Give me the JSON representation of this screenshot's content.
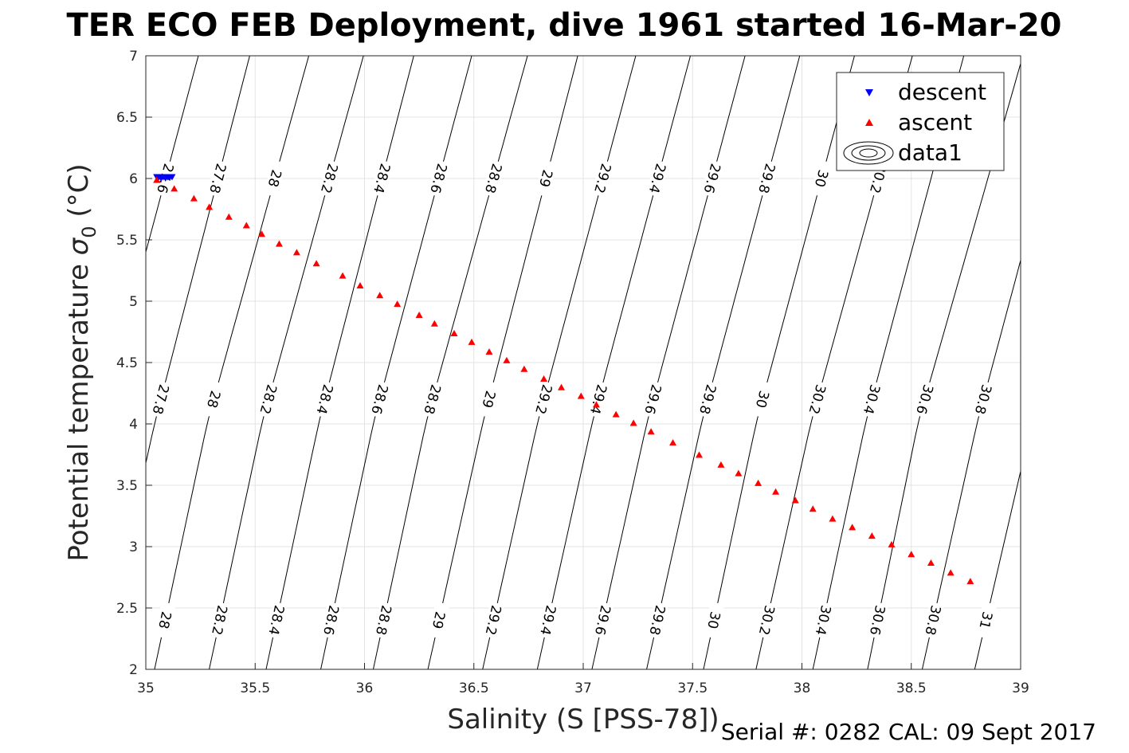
{
  "chart_data": {
    "type": "scatter",
    "title": "TER ECO FEB Deployment, dive 1961 started 16-Mar-20",
    "xlabel": "Salinity (S [PSS-78])",
    "ylabel_main": "Potential temperature ",
    "ylabel_symbol": "σ",
    "ylabel_sub": "0",
    "ylabel_unit": " (°C)",
    "xlim": [
      35,
      39
    ],
    "ylim": [
      2,
      7
    ],
    "xticks": [
      "35",
      "35.5",
      "36",
      "36.5",
      "37",
      "37.5",
      "38",
      "38.5",
      "39"
    ],
    "yticks": [
      "2",
      "2.5",
      "3",
      "3.5",
      "4",
      "4.5",
      "5",
      "5.5",
      "6",
      "6.5",
      "7"
    ],
    "grid": true,
    "legend_position": "top-right",
    "legend": [
      "descent",
      "ascent",
      "data1"
    ],
    "series": [
      {
        "name": "descent",
        "marker": "triangle-down",
        "color": "#0000ff",
        "x": [
          35.05,
          35.06,
          35.07,
          35.08,
          35.09,
          35.1,
          35.11,
          35.12
        ],
        "y": [
          6.01,
          6.01,
          6.0,
          6.01,
          6.0,
          6.01,
          6.01,
          6.01
        ]
      },
      {
        "name": "ascent",
        "marker": "triangle-up",
        "color": "#ff0000",
        "x": [
          35.05,
          35.13,
          35.22,
          35.29,
          35.38,
          35.46,
          35.53,
          35.61,
          35.69,
          35.78,
          35.9,
          35.98,
          36.07,
          36.15,
          36.25,
          36.32,
          36.41,
          36.49,
          36.57,
          36.65,
          36.73,
          36.82,
          36.9,
          36.99,
          37.06,
          37.15,
          37.23,
          37.31,
          37.41,
          37.53,
          37.63,
          37.71,
          37.8,
          37.88,
          37.97,
          38.05,
          38.14,
          38.23,
          38.32,
          38.41,
          38.5,
          38.59,
          38.68,
          38.77
        ],
        "y": [
          5.99,
          5.92,
          5.84,
          5.77,
          5.69,
          5.62,
          5.55,
          5.47,
          5.4,
          5.31,
          5.21,
          5.13,
          5.05,
          4.98,
          4.89,
          4.82,
          4.74,
          4.67,
          4.59,
          4.52,
          4.45,
          4.37,
          4.3,
          4.23,
          4.16,
          4.08,
          4.01,
          3.94,
          3.85,
          3.75,
          3.67,
          3.6,
          3.52,
          3.45,
          3.38,
          3.31,
          3.23,
          3.16,
          3.09,
          3.02,
          2.94,
          2.87,
          2.79,
          2.72
        ]
      }
    ],
    "contours": {
      "name": "data1",
      "color": "#000000",
      "levels": [
        "27.6",
        "27.8",
        "28",
        "28.2",
        "28.4",
        "28.6",
        "28.8",
        "29",
        "29.2",
        "29.4",
        "29.6",
        "29.8",
        "30",
        "30.2",
        "30.4",
        "30.6",
        "30.8",
        "31"
      ],
      "salinity_at_t6": [
        35.09,
        35.33,
        35.59,
        35.84,
        36.08,
        36.34,
        36.59,
        36.83,
        37.09,
        37.34,
        37.59,
        37.84,
        38.09,
        38.35,
        38.59,
        38.85,
        39.1,
        39.35
      ],
      "salinity_at_t4": [
        34.79,
        35.04,
        35.28,
        35.53,
        35.79,
        36.04,
        36.28,
        36.54,
        36.79,
        37.04,
        37.29,
        37.54,
        37.79,
        38.04,
        38.29,
        38.53,
        38.8,
        39.05
      ],
      "salinity_at_t2": [
        34.55,
        34.79,
        35.04,
        35.29,
        35.55,
        35.8,
        36.04,
        36.29,
        36.54,
        36.79,
        37.04,
        37.29,
        37.55,
        37.79,
        38.05,
        38.3,
        38.55,
        38.79
      ],
      "label_rows": [
        {
          "t": 6.0,
          "labels": [
            "27.6",
            "27.8",
            "28",
            "28.2",
            "28.4",
            "28.6",
            "28.8",
            "29",
            "29.2",
            "29.4",
            "29.6",
            "29.8",
            "30",
            "30.2"
          ]
        },
        {
          "t": 4.2,
          "labels": [
            "27.8",
            "28",
            "28.2",
            "28.4",
            "28.6",
            "28.8",
            "29",
            "29.2",
            "29.4",
            "29.6",
            "29.8",
            "30",
            "30.2",
            "30.4",
            "30.6",
            "30.8"
          ]
        },
        {
          "t": 2.4,
          "labels": [
            "28",
            "28.2",
            "28.4",
            "28.6",
            "28.8",
            "29",
            "29.2",
            "29.4",
            "29.6",
            "29.8",
            "30",
            "30.2",
            "30.4",
            "30.6",
            "30.8",
            "31"
          ]
        }
      ]
    }
  },
  "footer": "Serial #: 0282  CAL: 09 Sept 2017"
}
